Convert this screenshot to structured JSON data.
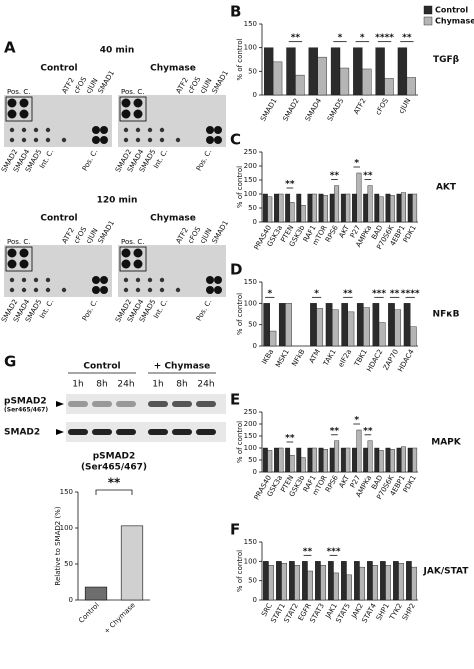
{
  "panel_a": {
    "letter": "A",
    "blots": [
      {
        "time": "40 min",
        "conditions": [
          {
            "name": "Control",
            "box_label": "Pos. C.",
            "top_labels": [
              "ATF2",
              "cFOS",
              "cJUN",
              "SMAD1"
            ],
            "bottom_labels": [
              "SMAD2",
              "SMAD4",
              "SMAD5",
              "Int. C.",
              "Pos. C."
            ]
          },
          {
            "name": "Chymase",
            "box_label": "Pos. C.",
            "top_labels": [
              "ATF2",
              "cFOS",
              "cJUN",
              "SMAD1"
            ],
            "bottom_labels": [
              "SMAD2",
              "SMAD4",
              "SMAD5",
              "Int. C.",
              "Pos. C."
            ]
          }
        ]
      },
      {
        "time": "120 min",
        "conditions": [
          {
            "name": "Control",
            "box_label": "Pos. C.",
            "top_labels": [
              "ATF2",
              "cFOS",
              "cJUN",
              "SMAD1"
            ],
            "bottom_labels": [
              "SMAD2",
              "SMAD4",
              "SMAD5",
              "Int. C.",
              "Pos. C."
            ]
          },
          {
            "name": "Chymase",
            "box_label": "Pos. C.",
            "top_labels": [
              "ATF2",
              "cFOS",
              "cJUN",
              "SMAD1"
            ],
            "bottom_labels": [
              "SMAD2",
              "SMAD4",
              "SMAD5",
              "Int. C.",
              "Pos. C."
            ]
          }
        ]
      }
    ]
  },
  "western": {
    "letter": "G",
    "groups": [
      "Control",
      "+ Chymase"
    ],
    "lanes": [
      "1h",
      "8h",
      "24h",
      "1h",
      "8h",
      "24h"
    ],
    "rows": [
      {
        "label": "pSMAD2",
        "sublabel": "(Ser465/467)"
      },
      {
        "label": "SMAD2"
      }
    ]
  },
  "chart_data": [
    {
      "type": "bar",
      "panel": "B",
      "group": "TGFβ",
      "ylabel": "% of control",
      "legend": "top-right",
      "categories": [
        "SMAD1",
        "SMAD2",
        "SMAD4",
        "SMAD5",
        "ATF2",
        "cFOS",
        "cJUN"
      ],
      "series": [
        {
          "name": "Control",
          "color": "#2b2b2b",
          "values": [
            100,
            100,
            100,
            100,
            100,
            100,
            100
          ]
        },
        {
          "name": "Chymase",
          "color": "#b5b5b5",
          "values": [
            70,
            42,
            80,
            57,
            55,
            35,
            37
          ]
        }
      ],
      "significance": [
        null,
        "**",
        null,
        "*",
        "*",
        "****",
        "**"
      ],
      "ylim": [
        0,
        150
      ],
      "yticks": [
        0,
        50,
        100,
        150
      ]
    },
    {
      "type": "bar",
      "panel": "C",
      "group": "AKT",
      "ylabel": "% of control",
      "categories": [
        "PRAS40",
        "GSK3a",
        "PTEN",
        "GSK3b",
        "RAF1",
        "mTOR",
        "RPS6",
        "AKT",
        "P27",
        "AMPKa",
        "BAD",
        "P70S6K",
        "4EBP1",
        "PDK1"
      ],
      "series": [
        {
          "color": "#2b2b2b",
          "values": [
            100,
            100,
            100,
            100,
            100,
            100,
            100,
            100,
            100,
            100,
            100,
            100,
            100,
            100
          ]
        },
        {
          "color": "#b5b5b5",
          "values": [
            90,
            100,
            70,
            60,
            100,
            95,
            130,
            100,
            175,
            130,
            90,
            95,
            105,
            100
          ]
        }
      ],
      "significance": [
        null,
        null,
        "**",
        null,
        null,
        null,
        "**",
        null,
        "*",
        "**",
        null,
        null,
        null,
        null
      ],
      "ylim": [
        0,
        250
      ],
      "yticks": [
        0,
        50,
        100,
        150,
        200,
        250
      ]
    },
    {
      "type": "bar",
      "panel": "D",
      "group": "NFκB",
      "ylabel": "% of control",
      "categories": [
        "IKBa",
        "MSK1",
        "NFkB",
        "ATM",
        "TAK1",
        "eIF2a",
        "TBK1",
        "HDAC2",
        "ZAP70",
        "HDAC4"
      ],
      "series": [
        {
          "color": "#2b2b2b",
          "values": [
            100,
            100,
            0,
            100,
            100,
            100,
            100,
            100,
            100,
            100
          ]
        },
        {
          "color": "#b5b5b5",
          "values": [
            35,
            100,
            0,
            88,
            85,
            80,
            90,
            55,
            85,
            45
          ]
        }
      ],
      "significance": [
        "*",
        null,
        null,
        "*",
        null,
        "**",
        null,
        "***",
        "**",
        "****"
      ],
      "ylim": [
        0,
        150
      ],
      "yticks": [
        0,
        50,
        100,
        150
      ]
    },
    {
      "type": "bar",
      "panel": "E",
      "group": "MAPK",
      "ylabel": "% of control",
      "categories": [
        "PRAS40",
        "GSK3a",
        "PTEN",
        "GSK3b",
        "RAF1",
        "mTOR",
        "RPS6",
        "AKT",
        "P27",
        "AMPKa",
        "BAD",
        "P70S6K",
        "4EBP1",
        "PDK1"
      ],
      "series": [
        {
          "color": "#2b2b2b",
          "values": [
            100,
            100,
            100,
            100,
            100,
            100,
            100,
            100,
            100,
            100,
            100,
            100,
            100,
            100
          ]
        },
        {
          "color": "#b5b5b5",
          "values": [
            90,
            100,
            70,
            60,
            100,
            95,
            130,
            100,
            175,
            130,
            90,
            95,
            105,
            100
          ]
        }
      ],
      "significance": [
        null,
        null,
        "**",
        null,
        null,
        null,
        "**",
        null,
        "*",
        "**",
        null,
        null,
        null,
        null
      ],
      "ylim": [
        0,
        250
      ],
      "yticks": [
        0,
        50,
        100,
        150,
        200,
        250
      ]
    },
    {
      "type": "bar",
      "panel": "F",
      "group": "JAK/STAT",
      "ylabel": "% of control",
      "categories": [
        "SRC",
        "STAT1",
        "STAT2",
        "EGFR",
        "STAT3",
        "JAK1",
        "STAT5",
        "JAK2",
        "STAT4",
        "SHP1",
        "TYK2",
        "SHP2"
      ],
      "series": [
        {
          "color": "#2b2b2b",
          "values": [
            100,
            100,
            100,
            100,
            100,
            100,
            100,
            100,
            100,
            100,
            100,
            100
          ]
        },
        {
          "color": "#b5b5b5",
          "values": [
            90,
            95,
            90,
            75,
            90,
            70,
            65,
            85,
            90,
            90,
            95,
            85
          ]
        }
      ],
      "significance": [
        null,
        null,
        null,
        "**",
        null,
        "***",
        null,
        null,
        null,
        null,
        null,
        null
      ],
      "ylim": [
        0,
        150
      ],
      "yticks": [
        0,
        50,
        100,
        150
      ]
    },
    {
      "type": "bar",
      "title": "pSMAD2",
      "subtitle": "(Ser465/467)",
      "ylabel": "Relative to SMAD2 (%)",
      "categories": [
        "Control",
        "+ Chymase"
      ],
      "values": [
        18,
        103
      ],
      "colors": [
        "#6e6e6e",
        "#d0d0d0"
      ],
      "annotation": "**",
      "ylim": [
        0,
        150
      ],
      "yticks": [
        0,
        50,
        100,
        150
      ]
    }
  ]
}
